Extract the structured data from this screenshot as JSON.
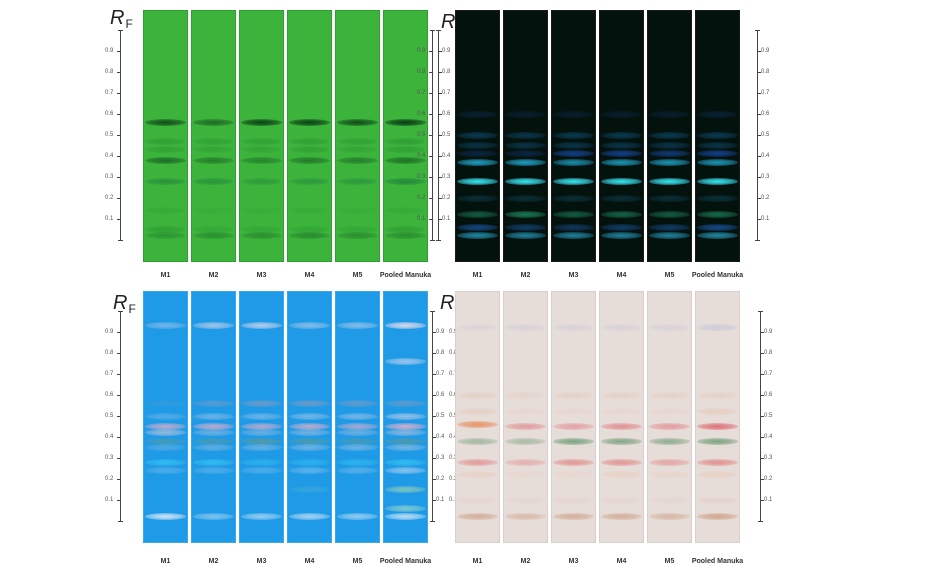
{
  "figure": {
    "axis_title": "R",
    "axis_title_sub": "F",
    "ticks": [
      "0.9",
      "0.8",
      "0.7",
      "0.6",
      "0.5",
      "0.4",
      "0.3",
      "0.2",
      "0.1"
    ],
    "lanes": [
      "M1",
      "M2",
      "M3",
      "M4",
      "M5",
      "Pooled Manuka"
    ]
  },
  "panels": [
    {
      "id": "top-left",
      "description": "HPTLC plate under UV 254 nm (green background)",
      "background": "#3cb43c",
      "border": "#2fa02f",
      "bands": [
        {
          "rf": 0.56,
          "color": "#0b3a14",
          "intensity": [
            0.85,
            0.6,
            0.95,
            0.95,
            0.85,
            1.0
          ]
        },
        {
          "rf": 0.47,
          "color": "#1f7f2a",
          "intensity": [
            0.4,
            0.35,
            0.35,
            0.4,
            0.35,
            0.45
          ]
        },
        {
          "rf": 0.43,
          "color": "#1f7f2a",
          "intensity": [
            0.35,
            0.3,
            0.3,
            0.35,
            0.3,
            0.4
          ]
        },
        {
          "rf": 0.38,
          "color": "#145a1e",
          "intensity": [
            0.8,
            0.6,
            0.55,
            0.65,
            0.6,
            0.75
          ]
        },
        {
          "rf": 0.28,
          "color": "#1e7a3a",
          "intensity": [
            0.6,
            0.55,
            0.45,
            0.5,
            0.5,
            0.75
          ]
        },
        {
          "rf": 0.14,
          "color": "#2a8f30",
          "intensity": [
            0.3,
            0.2,
            0.2,
            0.25,
            0.2,
            0.3
          ]
        },
        {
          "rf": 0.05,
          "color": "#238a2c",
          "intensity": [
            0.5,
            0.3,
            0.3,
            0.35,
            0.3,
            0.5
          ]
        },
        {
          "rf": 0.02,
          "color": "#1a7024",
          "intensity": [
            0.45,
            0.55,
            0.55,
            0.6,
            0.55,
            0.55
          ]
        }
      ]
    },
    {
      "id": "top-right",
      "description": "HPTLC plate under UV 366 nm (dark background, blue fluorescence)",
      "background": "#04120e",
      "border": "#1a1a1a",
      "bands": [
        {
          "rf": 0.6,
          "color": "#0d2f55",
          "intensity": [
            0.5,
            0.45,
            0.45,
            0.45,
            0.45,
            0.55
          ]
        },
        {
          "rf": 0.5,
          "color": "#0e4a6e",
          "intensity": [
            0.7,
            0.65,
            0.7,
            0.7,
            0.7,
            0.7
          ]
        },
        {
          "rf": 0.45,
          "color": "#0e4a6e",
          "intensity": [
            0.6,
            0.6,
            0.6,
            0.6,
            0.6,
            0.6
          ]
        },
        {
          "rf": 0.41,
          "color": "#1a52b8",
          "intensity": [
            0.3,
            0.3,
            0.7,
            0.7,
            0.6,
            0.7
          ]
        },
        {
          "rf": 0.37,
          "color": "#22b6e0",
          "intensity": [
            0.85,
            0.85,
            0.75,
            0.8,
            0.8,
            0.8
          ]
        },
        {
          "rf": 0.28,
          "color": "#3ae6f2",
          "intensity": [
            1.0,
            1.0,
            1.0,
            1.0,
            1.0,
            1.0
          ]
        },
        {
          "rf": 0.2,
          "color": "#0e4a5e",
          "intensity": [
            0.5,
            0.5,
            0.5,
            0.5,
            0.5,
            0.55
          ]
        },
        {
          "rf": 0.12,
          "color": "#1f9a6a",
          "intensity": [
            0.55,
            0.75,
            0.55,
            0.6,
            0.55,
            0.65
          ]
        },
        {
          "rf": 0.06,
          "color": "#1a5cb0",
          "intensity": [
            0.7,
            0.55,
            0.5,
            0.55,
            0.55,
            0.75
          ]
        },
        {
          "rf": 0.02,
          "color": "#28a4c8",
          "intensity": [
            0.8,
            0.75,
            0.75,
            0.75,
            0.75,
            0.8
          ]
        }
      ]
    },
    {
      "id": "bottom-left",
      "description": "HPTLC plate under UV 366 nm after derivatization (blue background)",
      "background": "#1e9ae6",
      "border": "#3aa8ec",
      "bands": [
        {
          "rf": 0.93,
          "color": "#d8d8ec",
          "intensity": [
            0.45,
            0.7,
            0.8,
            0.55,
            0.55,
            1.0
          ]
        },
        {
          "rf": 0.76,
          "color": "#d0d8ee",
          "intensity": [
            0,
            0,
            0,
            0,
            0,
            0.7
          ]
        },
        {
          "rf": 0.56,
          "color": "#9a9ab8",
          "intensity": [
            0.15,
            0.45,
            0.6,
            0.6,
            0.55,
            0.5
          ]
        },
        {
          "rf": 0.5,
          "color": "#c8d0e8",
          "intensity": [
            0.3,
            0.45,
            0.45,
            0.5,
            0.5,
            0.7
          ]
        },
        {
          "rf": 0.45,
          "color": "#e0b0c8",
          "intensity": [
            0.8,
            0.8,
            0.75,
            0.8,
            0.7,
            0.9
          ]
        },
        {
          "rf": 0.42,
          "color": "#c8c8dc",
          "intensity": [
            0.7,
            0.45,
            0.45,
            0.5,
            0.45,
            0.6
          ]
        },
        {
          "rf": 0.38,
          "color": "#6a9a88",
          "intensity": [
            0.5,
            0.5,
            0.7,
            0.6,
            0.5,
            0.6
          ]
        },
        {
          "rf": 0.35,
          "color": "#b8c8e0",
          "intensity": [
            0.3,
            0.4,
            0.45,
            0.5,
            0.5,
            0.55
          ]
        },
        {
          "rf": 0.28,
          "color": "#3ac8f4",
          "intensity": [
            0.7,
            0.7,
            0.5,
            0.5,
            0.55,
            0.7
          ]
        },
        {
          "rf": 0.24,
          "color": "#a8d0f0",
          "intensity": [
            0.35,
            0.35,
            0.35,
            0.45,
            0.4,
            0.75
          ]
        },
        {
          "rf": 0.15,
          "color": "#b8e0a8",
          "intensity": [
            0,
            0,
            0,
            0.15,
            0,
            0.6
          ]
        },
        {
          "rf": 0.06,
          "color": "#b8e8c8",
          "intensity": [
            0,
            0,
            0,
            0,
            0,
            0.6
          ]
        },
        {
          "rf": 0.02,
          "color": "#e0ecf8",
          "intensity": [
            0.9,
            0.5,
            0.6,
            0.7,
            0.6,
            0.8
          ]
        }
      ]
    },
    {
      "id": "bottom-right",
      "description": "HPTLC plate under white light after derivatization",
      "background": "#e6dcd8",
      "border": "#d8d0cc",
      "bands": [
        {
          "rf": 0.92,
          "color": "#c8c8dc",
          "intensity": [
            0.4,
            0.5,
            0.5,
            0.5,
            0.5,
            0.8
          ]
        },
        {
          "rf": 0.6,
          "color": "#dcc0a8",
          "intensity": [
            0.35,
            0.25,
            0.3,
            0.3,
            0.3,
            0.3
          ]
        },
        {
          "rf": 0.52,
          "color": "#e8b8a0",
          "intensity": [
            0.35,
            0.15,
            0.15,
            0.15,
            0.15,
            0.4
          ]
        },
        {
          "rf": 0.46,
          "color": "#e88850",
          "intensity": [
            0.85,
            0,
            0,
            0,
            0,
            0
          ]
        },
        {
          "rf": 0.45,
          "color": "#e07078",
          "intensity": [
            0,
            0.6,
            0.55,
            0.7,
            0.6,
            1.0
          ]
        },
        {
          "rf": 0.38,
          "color": "#6a9a70",
          "intensity": [
            0.55,
            0.5,
            0.85,
            0.8,
            0.7,
            0.85
          ]
        },
        {
          "rf": 0.28,
          "color": "#e07878",
          "intensity": [
            0.65,
            0.45,
            0.7,
            0.7,
            0.55,
            0.75
          ]
        },
        {
          "rf": 0.22,
          "color": "#f0b898",
          "intensity": [
            0.3,
            0.15,
            0.15,
            0.3,
            0.2,
            0.35
          ]
        },
        {
          "rf": 0.1,
          "color": "#e0b8b0",
          "intensity": [
            0.2,
            0.15,
            0.2,
            0.2,
            0.15,
            0.3
          ]
        },
        {
          "rf": 0.02,
          "color": "#c89070",
          "intensity": [
            0.6,
            0.45,
            0.6,
            0.6,
            0.5,
            0.7
          ]
        }
      ]
    }
  ]
}
